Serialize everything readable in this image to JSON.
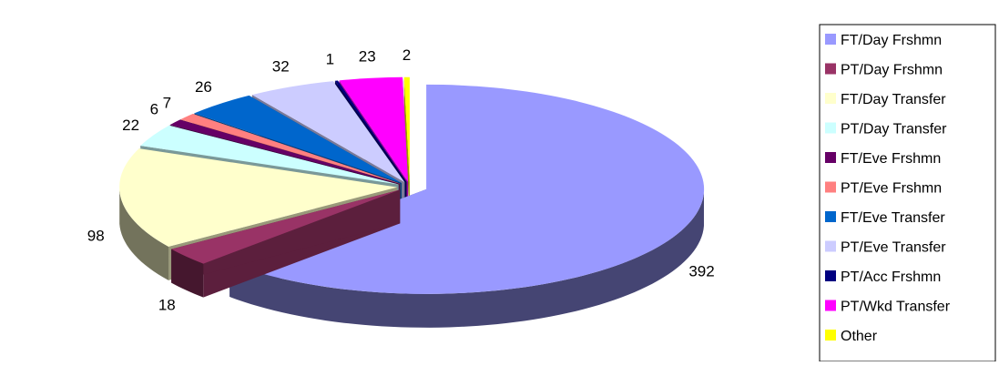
{
  "chart_data": {
    "type": "pie",
    "variant": "exploded-3d",
    "title": "",
    "categories": [
      "FT/Day Frshmn",
      "PT/Day Frshmn",
      "FT/Day Transfer",
      "PT/Day Transfer",
      "FT/Eve Frshmn",
      "PT/Eve Frshmn",
      "FT/Eve Transfer",
      "PT/Eve Transfer",
      "PT/Acc Frshmn",
      "PT/Wkd Transfer",
      "Other"
    ],
    "values": [
      392,
      18,
      98,
      22,
      6,
      7,
      26,
      32,
      1,
      23,
      2
    ],
    "colors": [
      "#9999FF",
      "#993366",
      "#FFFFCC",
      "#CCFFFF",
      "#660066",
      "#FF8080",
      "#0066CC",
      "#CCCCFF",
      "#000080",
      "#FF00FF",
      "#FFFF00"
    ],
    "data_labels": [
      "392",
      "18",
      "98",
      "22",
      "6",
      "7",
      "26",
      "32",
      "1",
      "23",
      "2"
    ],
    "legend": {
      "position": "right",
      "entries": [
        "FT/Day Frshmn",
        "PT/Day Frshmn",
        "FT/Day Transfer",
        "PT/Day Transfer",
        "FT/Eve Frshmn",
        "PT/Eve Frshmn",
        "FT/Eve Transfer",
        "PT/Eve Transfer",
        "PT/Acc Frshmn",
        "PT/Wkd Transfer",
        "Other"
      ]
    }
  }
}
